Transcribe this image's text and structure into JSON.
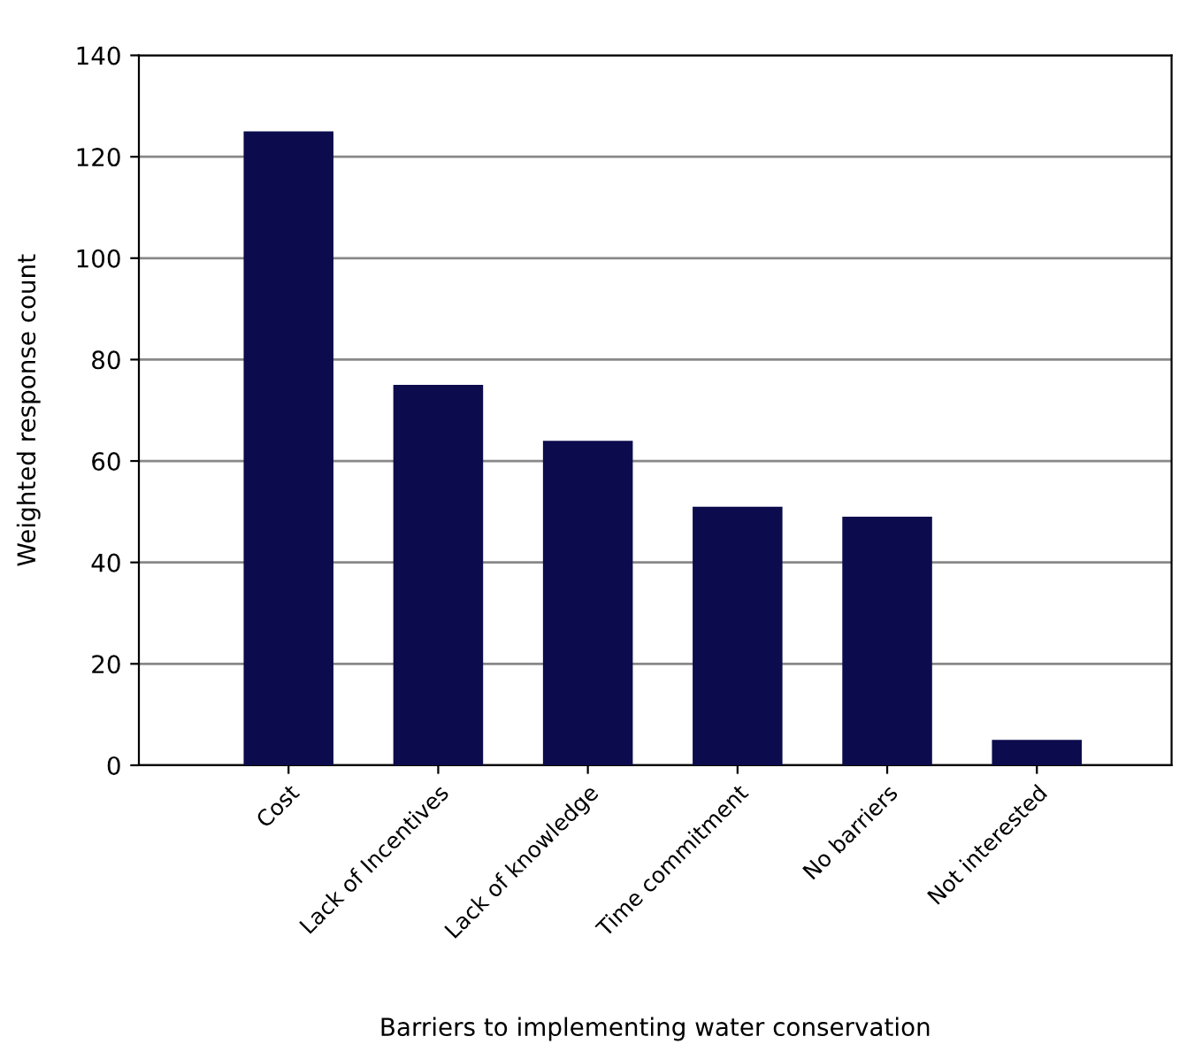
{
  "chart_data": {
    "type": "bar",
    "xlabel": "Barriers to implementing water conservation",
    "ylabel": "Weighted response count",
    "categories": [
      "Cost",
      "Lack of Incentives",
      "Lack of knowledge",
      "Time commitment",
      "No barriers",
      "Not interested"
    ],
    "values": [
      125,
      75,
      64,
      51,
      49,
      5
    ],
    "color": "#0b0b4d",
    "ylim": [
      0,
      140
    ],
    "yticks": [
      0,
      20,
      40,
      60,
      80,
      100,
      120,
      140
    ],
    "grid": "y"
  }
}
